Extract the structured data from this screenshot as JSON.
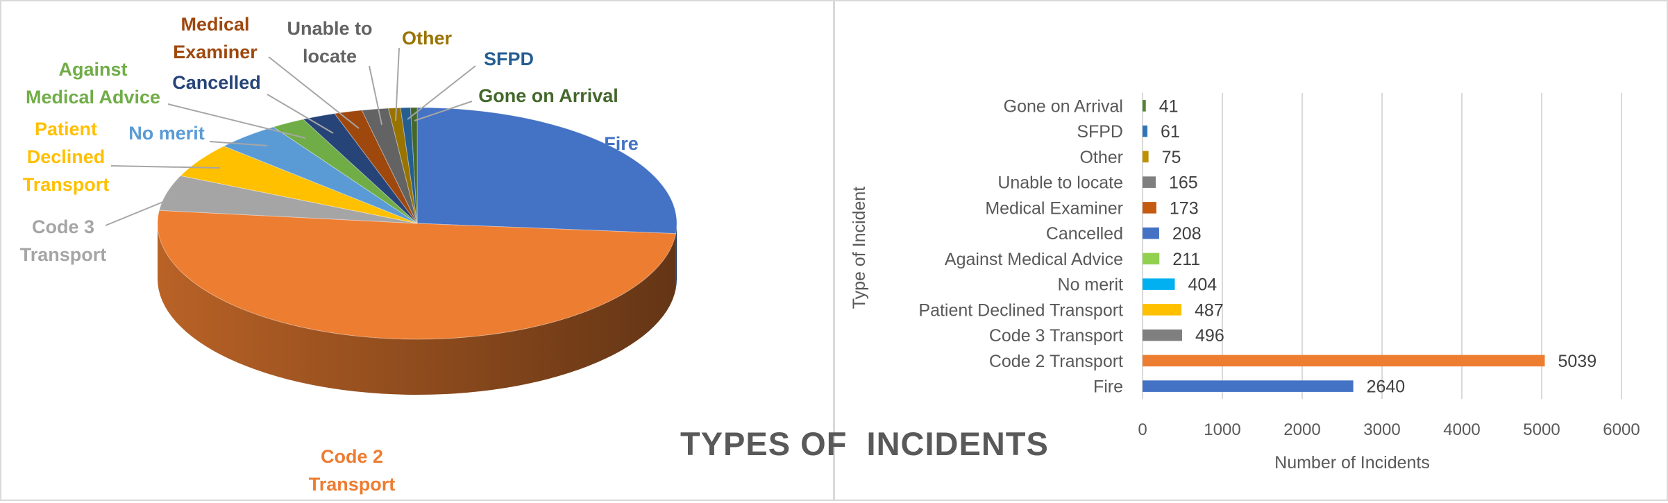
{
  "title": "TYPES OF  INCIDENTS",
  "chart_data": [
    {
      "type": "pie",
      "title": "",
      "labels": [
        "Fire",
        "Code 2 Transport",
        "Code 3 Transport",
        "Patient Declined Transport",
        "No merit",
        "Against Medical Advice",
        "Cancelled",
        "Medical Examiner",
        "Unable to locate",
        "Other",
        "SFPD",
        "Gone on Arrival"
      ],
      "values": [
        2640,
        5039,
        496,
        487,
        404,
        211,
        208,
        173,
        165,
        75,
        61,
        41
      ],
      "colors": [
        "#4472C4",
        "#ED7D31",
        "#A5A5A5",
        "#FFC000",
        "#5B9BD5",
        "#70AD47",
        "#264478",
        "#9E480E",
        "#636363",
        "#997300",
        "#255E91",
        "#43682B"
      ],
      "label_colors": [
        "#4472C4",
        "#ED7D31",
        "#A5A5A5",
        "#FFC000",
        "#5B9BD5",
        "#70AD47",
        "#264478",
        "#9E480E",
        "#636363",
        "#997300",
        "#255E91",
        "#43682B"
      ],
      "style": "3d-tilted",
      "data_labels": "category-name",
      "legend": "none"
    },
    {
      "type": "bar",
      "orientation": "horizontal",
      "title": "",
      "xlabel": "Number of Incidents",
      "ylabel": "Type of Incident",
      "categories": [
        "Fire",
        "Code 2 Transport",
        "Code 3 Transport",
        "Patient Declined Transport",
        "No merit",
        "Against Medical Advice",
        "Cancelled",
        "Medical Examiner",
        "Unable to locate",
        "Other",
        "SFPD",
        "Gone on Arrival"
      ],
      "values": [
        2640,
        5039,
        496,
        487,
        404,
        211,
        208,
        173,
        165,
        75,
        61,
        41
      ],
      "colors": [
        "#4472C4",
        "#ED7D31",
        "#7F7F7F",
        "#FFC000",
        "#00B0F0",
        "#92D050",
        "#4472C4",
        "#C55A11",
        "#7F7F7F",
        "#BF9000",
        "#2E75B6",
        "#548235"
      ],
      "xlim": [
        0,
        6000
      ],
      "xticks": [
        0,
        1000,
        2000,
        3000,
        4000,
        5000,
        6000
      ],
      "grid": "vertical",
      "data_labels": true,
      "legend": "none"
    }
  ]
}
